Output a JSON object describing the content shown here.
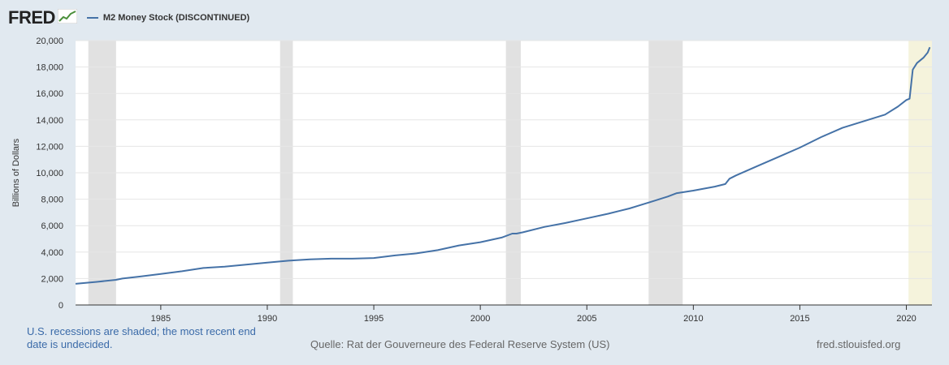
{
  "header": {
    "logo_text": "FRED",
    "logo_icon": "line-graph-icon"
  },
  "footer": {
    "note": "U.S. recessions are shaded; the most recent end date is undecided.",
    "source": "Quelle: Rat der Gouverneure des Federal Reserve System (US)",
    "url": "fred.stlouisfed.org"
  },
  "colors": {
    "background": "#e1e9f0",
    "plot_background": "#ffffff",
    "series": "#4572a7",
    "recession": "#e1e1e1",
    "recession_current": "#f5f3dc"
  },
  "chart_data": {
    "type": "line",
    "title": "",
    "xlabel": "",
    "ylabel": "Billions of Dollars",
    "xlim": [
      1981.0,
      2021.2
    ],
    "ylim": [
      0,
      20000
    ],
    "yticks": [
      0,
      2000,
      4000,
      6000,
      8000,
      10000,
      12000,
      14000,
      16000,
      18000,
      20000
    ],
    "ytick_labels": [
      "0",
      "2,000",
      "4,000",
      "6,000",
      "8,000",
      "10,000",
      "12,000",
      "14,000",
      "16,000",
      "18,000",
      "20,000"
    ],
    "xticks": [
      1985,
      1990,
      1995,
      2000,
      2005,
      2010,
      2015,
      2020
    ],
    "xtick_labels": [
      "1985",
      "1990",
      "1995",
      "2000",
      "2005",
      "2010",
      "2015",
      "2020"
    ],
    "grid": "horizontal",
    "legend": "top-left",
    "recessions": [
      {
        "start": 1981.6,
        "end": 1982.9
      },
      {
        "start": 1990.6,
        "end": 1991.2
      },
      {
        "start": 2001.2,
        "end": 2001.9
      },
      {
        "start": 2007.9,
        "end": 2009.5
      },
      {
        "start": 2020.1,
        "end": 2021.2,
        "current": true
      }
    ],
    "series": [
      {
        "name": "M2 Money Stock (DISCONTINUED)",
        "x": [
          1981.0,
          1982.0,
          1982.9,
          1983.2,
          1984.0,
          1985.0,
          1986.0,
          1987.0,
          1988.0,
          1989.0,
          1990.0,
          1991.0,
          1992.0,
          1993.0,
          1994.0,
          1995.0,
          1996.0,
          1997.0,
          1998.0,
          1999.0,
          2000.0,
          2001.0,
          2001.5,
          2001.7,
          2002.0,
          2003.0,
          2004.0,
          2005.0,
          2006.0,
          2007.0,
          2008.0,
          2008.8,
          2009.2,
          2010.0,
          2011.0,
          2011.5,
          2011.7,
          2012.0,
          2013.0,
          2014.0,
          2015.0,
          2016.0,
          2017.0,
          2018.0,
          2019.0,
          2019.6,
          2020.0,
          2020.15,
          2020.3,
          2020.5,
          2020.8,
          2021.0,
          2021.1
        ],
        "y": [
          1600,
          1750,
          1900,
          2000,
          2150,
          2350,
          2550,
          2800,
          2900,
          3050,
          3200,
          3350,
          3450,
          3500,
          3500,
          3550,
          3750,
          3900,
          4150,
          4500,
          4750,
          5100,
          5400,
          5400,
          5500,
          5900,
          6200,
          6550,
          6900,
          7300,
          7800,
          8200,
          8450,
          8650,
          8950,
          9150,
          9550,
          9800,
          10500,
          11200,
          11900,
          12700,
          13400,
          13900,
          14400,
          15000,
          15500,
          15600,
          17800,
          18300,
          18700,
          19100,
          19500
        ]
      }
    ]
  }
}
